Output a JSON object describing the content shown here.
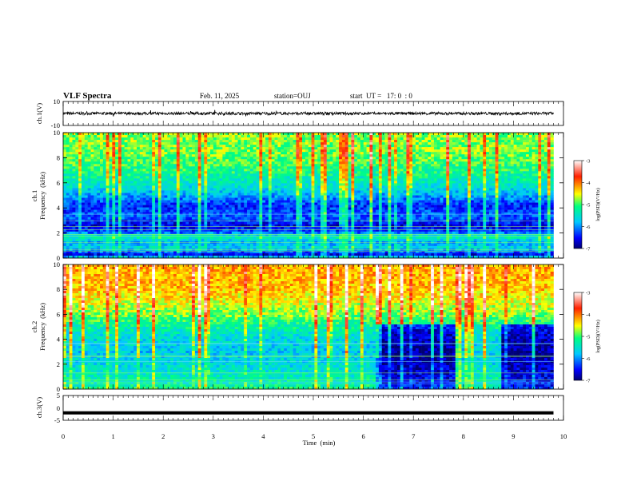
{
  "header": {
    "title": "VLF Spectra",
    "date": "Feb. 11, 2025",
    "station": "station=OUJ",
    "start": "start  UT =   17: 0  : 0"
  },
  "chart_data": [
    {
      "type": "line",
      "name": "ch1-waveform",
      "ylabel": "ch.1(V)",
      "ylim": [
        -10,
        10
      ],
      "yticks": [
        "10",
        "-10"
      ],
      "xlim": [
        0,
        10
      ],
      "description_values": {
        "baseline": 0,
        "typical_amplitude": 1.2
      }
    },
    {
      "type": "heatmap",
      "name": "ch1-spectrogram",
      "ylabel": [
        "ch.1",
        "Frequency  (kHz)"
      ],
      "xlim": [
        0,
        10
      ],
      "ylim": [
        0,
        10
      ],
      "yticks": [
        "0",
        "2",
        "4",
        "6",
        "8",
        "10"
      ],
      "data_end_min": 9.8,
      "colorbar": {
        "label": "log(PSD)(V²/Hz)",
        "range": [
          -7,
          -3
        ],
        "ticks": [
          "-3",
          "-4",
          "-5",
          "-6",
          "-7"
        ]
      },
      "profile_khz_logpsd": [
        [
          0,
          -5.5
        ],
        [
          0.3,
          -6.6
        ],
        [
          0.8,
          -5.6
        ],
        [
          1.2,
          -5.9
        ],
        [
          1.7,
          -5.3
        ],
        [
          2.1,
          -6.3
        ],
        [
          2.6,
          -6.6
        ],
        [
          3.2,
          -6.2
        ],
        [
          4.2,
          -6.4
        ],
        [
          5.5,
          -5.6
        ],
        [
          7,
          -5.1
        ],
        [
          8.5,
          -4.8
        ],
        [
          10,
          -4.8
        ]
      ]
    },
    {
      "type": "heatmap",
      "name": "ch2-spectrogram",
      "ylabel": [
        "ch.2",
        "Frequency  (kHz)"
      ],
      "xlim": [
        0,
        10
      ],
      "ylim": [
        0,
        10
      ],
      "yticks": [
        "0",
        "2",
        "4",
        "6",
        "8",
        "10"
      ],
      "data_end_min": 9.8,
      "colorbar": {
        "label": "log(PSD)(V²/Hz)",
        "range": [
          -7,
          -3
        ],
        "ticks": [
          "-3",
          "-4",
          "-5",
          "-6",
          "-7"
        ]
      },
      "profile_khz_logpsd": [
        [
          0,
          -5.2
        ],
        [
          1,
          -5.4
        ],
        [
          2,
          -5.6
        ],
        [
          3,
          -5.7
        ],
        [
          4.5,
          -5.5
        ],
        [
          6,
          -4.8
        ],
        [
          8,
          -4.3
        ],
        [
          10,
          -4.2
        ]
      ],
      "quiet_intervals_min": [
        [
          6.25,
          7.85
        ],
        [
          8.75,
          9.8
        ]
      ]
    },
    {
      "type": "line",
      "name": "ch3-waveform",
      "ylabel": "ch.3(V)",
      "ylim": [
        -5,
        5
      ],
      "yticks": [
        "5",
        "0",
        "-5"
      ],
      "xlim": [
        0,
        10
      ],
      "description_values": {
        "level": -2
      }
    }
  ],
  "xaxis": {
    "label": "Time  (min)",
    "ticks": [
      "0",
      "1",
      "2",
      "3",
      "4",
      "5",
      "6",
      "7",
      "8",
      "9",
      "10"
    ]
  }
}
